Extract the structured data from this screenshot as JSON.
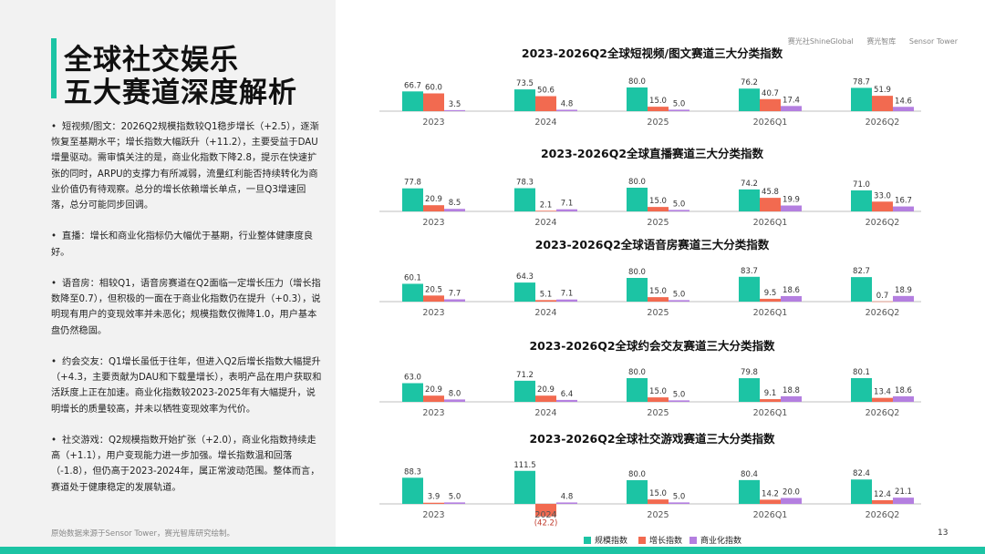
{
  "title": [
    "全球社交娱乐",
    "五大赛道深度解析"
  ],
  "paragraphs": [
    "短视频/图文：2026Q2规模指数较Q1稳步增长（+2.5），逐渐恢复至基期水平；增长指数大幅跃升（+11.2），主要受益于DAU增量驱动。需审慎关注的是，商业化指数下降2.8，提示在快速扩张的同时，ARPU的支撑力有所减弱，流量红利能否持续转化为商业价值仍有待观察。总分的增长依赖增长单点，一旦Q3增速回落，总分可能同步回调。",
    "直播：增长和商业化指标仍大幅优于基期，行业整体健康度良好。",
    "语音房：相较Q1，语音房赛道在Q2面临一定增长压力（增长指数降至0.7），但积极的一面在于商业化指数仍在提升（+0.3），说明现有用户的变现效率并未恶化；规模指数仅微降1.0，用户基本盘仍然稳固。",
    "约会交友：Q1增长虽低于往年，但进入Q2后增长指数大幅提升（+4.3，主要贡献为DAU和下载量增长），表明产品在用户获取和活跃度上正在加速。商业化指数较2023-2025年有大幅提升，说明增长的质量较高，并未以牺牲变现效率为代价。",
    "社交游戏：Q2规模指数开始扩张（+2.0），商业化指数持续走高（+1.1），用户变现能力进一步加强。增长指数温和回落（-1.8），但仍高于2023-2024年，属正常波动范围。整体而言，赛道处于健康稳定的发展轨道。"
  ],
  "footnote": "原始数据来源于Sensor Tower，赛光智库研究绘制。",
  "logos": [
    "赛光社ShineGlobal",
    "赛光智库",
    "Sensor Tower"
  ],
  "page_number": "13",
  "colors": {
    "scale": "#1cc4a4",
    "growth": "#f26a50",
    "monetization": "#b47fe0",
    "accent": "#1cc4a4"
  },
  "chart_data": [
    {
      "type": "bar",
      "title": "2023-2026Q2全球短视频/图文赛道三大分类指数",
      "categories": [
        "2023",
        "2024",
        "2025",
        "2026Q1",
        "2026Q2"
      ],
      "series": [
        {
          "name": "规模指数",
          "values": [
            66.7,
            73.5,
            80.0,
            76.2,
            78.7
          ]
        },
        {
          "name": "增长指数",
          "values": [
            60.0,
            50.6,
            15.0,
            40.7,
            51.9
          ]
        },
        {
          "name": "商业化指数",
          "values": [
            3.5,
            4.8,
            5.0,
            17.4,
            14.6
          ]
        }
      ]
    },
    {
      "type": "bar",
      "title": "2023-2026Q2全球直播赛道三大分类指数",
      "categories": [
        "2023",
        "2024",
        "2025",
        "2026Q1",
        "2026Q2"
      ],
      "series": [
        {
          "name": "规模指数",
          "values": [
            77.8,
            78.3,
            80.0,
            74.2,
            71.0
          ]
        },
        {
          "name": "增长指数",
          "values": [
            20.9,
            2.1,
            15.0,
            45.8,
            33.0
          ]
        },
        {
          "name": "商业化指数",
          "values": [
            8.5,
            7.1,
            5.0,
            19.9,
            16.7
          ]
        }
      ]
    },
    {
      "type": "bar",
      "title": "2023-2026Q2全球语音房赛道三大分类指数",
      "categories": [
        "2023",
        "2024",
        "2025",
        "2026Q1",
        "2026Q2"
      ],
      "series": [
        {
          "name": "规模指数",
          "values": [
            60.1,
            64.3,
            80.0,
            83.7,
            82.7
          ]
        },
        {
          "name": "增长指数",
          "values": [
            20.5,
            5.1,
            15.0,
            9.5,
            0.7
          ]
        },
        {
          "name": "商业化指数",
          "values": [
            7.7,
            7.1,
            5.0,
            18.6,
            18.9
          ]
        }
      ]
    },
    {
      "type": "bar",
      "title": "2023-2026Q2全球约会交友赛道三大分类指数",
      "categories": [
        "2023",
        "2024",
        "2025",
        "2026Q1",
        "2026Q2"
      ],
      "series": [
        {
          "name": "规模指数",
          "values": [
            63.0,
            71.2,
            80.0,
            79.8,
            80.1
          ]
        },
        {
          "name": "增长指数",
          "values": [
            20.9,
            20.9,
            15.0,
            9.1,
            13.4
          ]
        },
        {
          "name": "商业化指数",
          "values": [
            8.0,
            6.4,
            5.0,
            18.8,
            18.6
          ]
        }
      ]
    },
    {
      "type": "bar",
      "title": "2023-2026Q2全球社交游戏赛道三大分类指数",
      "categories": [
        "2023",
        "2024",
        "2025",
        "2026Q1",
        "2026Q2"
      ],
      "series": [
        {
          "name": "规模指数",
          "values": [
            88.3,
            111.5,
            80.0,
            80.4,
            82.4
          ]
        },
        {
          "name": "增长指数",
          "values": [
            3.9,
            -42.2,
            15.0,
            14.2,
            12.4
          ]
        },
        {
          "name": "商业化指数",
          "values": [
            5.0,
            4.8,
            5.0,
            20.0,
            21.1
          ]
        }
      ],
      "value_labels": [
        [
          "88.3",
          "111.5",
          "80.0",
          "80.4",
          "82.4"
        ],
        [
          "3.9",
          "(42.2)",
          "15.0",
          "14.2",
          "12.4"
        ],
        [
          "5.0",
          "4.8",
          "5.0",
          "20.0",
          "21.1"
        ]
      ]
    }
  ],
  "legend": [
    "规模指数",
    "增长指数",
    "商业化指数"
  ]
}
